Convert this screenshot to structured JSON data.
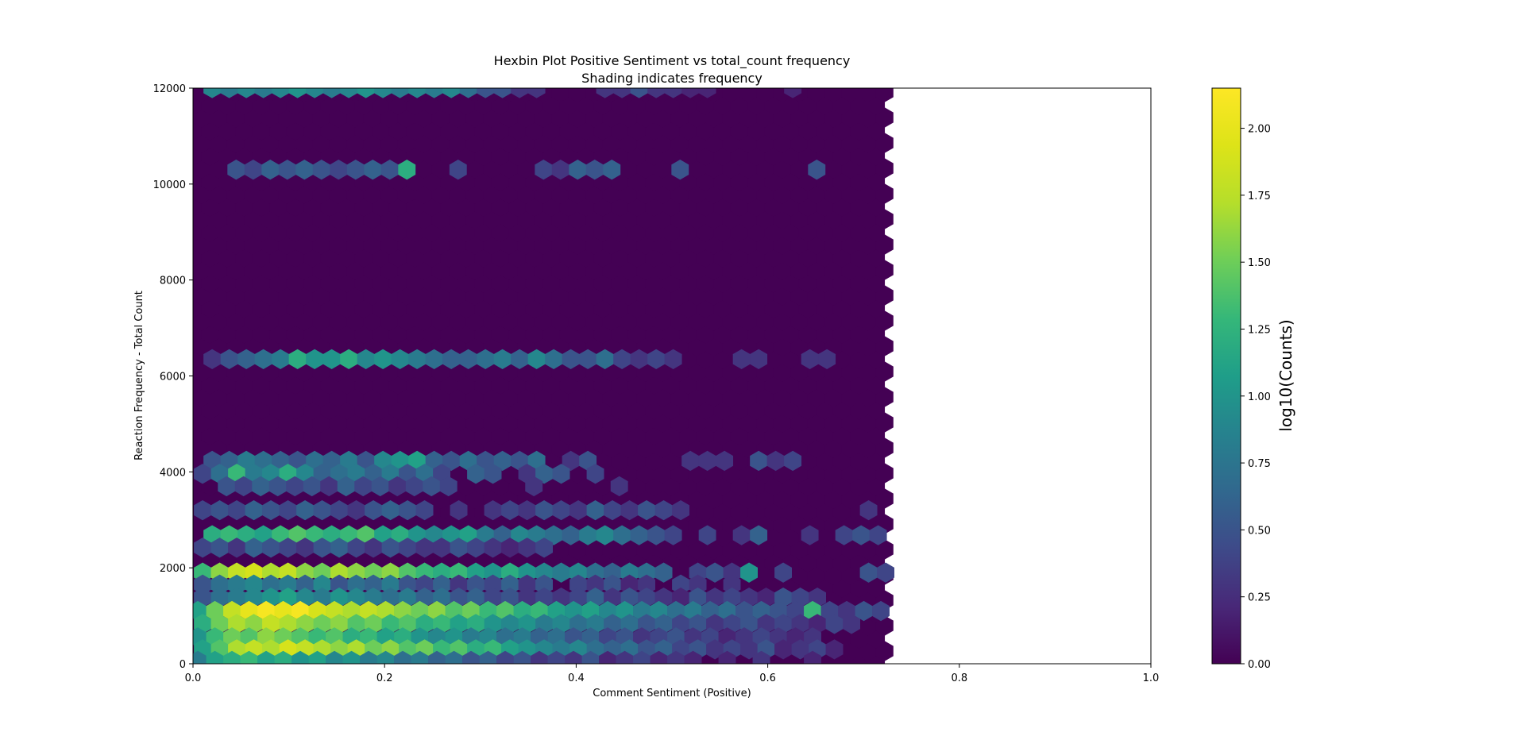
{
  "chart_data": {
    "type": "heatmap",
    "subtype": "hexbin",
    "title_lines": [
      "Hexbin Plot Positive Sentiment vs total_count frequency",
      "Shading indicates frequency"
    ],
    "xlabel": "Comment Sentiment (Positive)",
    "ylabel": "Reaction Frequency - Total Count",
    "xlim": [
      0,
      1
    ],
    "ylim": [
      0,
      12000
    ],
    "x_ticks": [
      0.0,
      0.2,
      0.4,
      0.6,
      0.8,
      1.0
    ],
    "x_tick_labels": [
      "0.0",
      "0.2",
      "0.4",
      "0.6",
      "0.8",
      "1.0"
    ],
    "y_ticks": [
      0,
      2000,
      4000,
      6000,
      8000,
      10000,
      12000
    ],
    "y_tick_labels": [
      "0",
      "2000",
      "4000",
      "6000",
      "8000",
      "10000",
      "12000"
    ],
    "colormap": "viridis",
    "color_scale": "log10",
    "colorbar": {
      "label": "log10(Counts)",
      "range": [
        0,
        2.15
      ],
      "ticks": [
        0.0,
        0.25,
        0.5,
        0.75,
        1.0,
        1.25,
        1.5,
        1.75,
        2.0
      ],
      "tick_labels": [
        "0.00",
        "0.25",
        "0.50",
        "0.75",
        "1.00",
        "1.25",
        "1.50",
        "1.75",
        "2.00"
      ]
    },
    "hex_region": {
      "x_extent": [
        0,
        0.725
      ],
      "y_extent": [
        0,
        12000
      ],
      "background_log10_count": 0.0
    },
    "bands": [
      {
        "y": 12000,
        "start": 0.02,
        "values": [
          0.9,
          0.8,
          0.9,
          0.8,
          0.9,
          1.0,
          0.9,
          0.8,
          0.9,
          1.0,
          0.9,
          0.8,
          0.9,
          0.8,
          0.9,
          0.7,
          0.5,
          0.5,
          0.3,
          0.3,
          0,
          0,
          0,
          0.3,
          0.3,
          0.5,
          0.3,
          0.3,
          0.2,
          0.2,
          0,
          0,
          0,
          0,
          0.2,
          0,
          0,
          0,
          0,
          0,
          0,
          0.2,
          0,
          0,
          0,
          0,
          0,
          0.2
        ],
        "gap": []
      },
      {
        "y": 10300,
        "start": 0.045,
        "values": [
          0.5,
          0.4,
          0.6,
          0.5,
          0.6,
          0.5,
          0.4,
          0.5,
          0.6,
          0.5,
          1.2,
          0,
          0,
          0.4,
          0,
          0,
          0,
          0,
          0.4,
          0.3,
          0.6,
          0.5,
          0.6,
          0,
          0,
          0,
          0.5,
          0,
          0,
          0,
          0,
          0,
          0,
          0,
          0.5,
          0,
          0,
          0,
          0,
          0.4,
          0,
          0,
          0,
          0,
          0,
          0,
          0,
          0,
          0,
          0,
          0,
          0,
          0,
          0,
          0,
          0,
          0,
          0.4
        ],
        "gap": []
      },
      {
        "y": 6350,
        "start": 0.02,
        "values": [
          0.3,
          0.5,
          0.6,
          0.7,
          0.8,
          1.2,
          1.0,
          1.0,
          1.2,
          0.9,
          1.0,
          0.9,
          0.8,
          0.7,
          0.6,
          0.6,
          0.7,
          0.8,
          0.6,
          0.9,
          0.7,
          0.5,
          0.5,
          0.7,
          0.4,
          0.3,
          0.4,
          0.3,
          0,
          0,
          0,
          0.3,
          0.3,
          0,
          0,
          0.3,
          0.3,
          0,
          0,
          0,
          0,
          0,
          0,
          0,
          0,
          0,
          0,
          0.3
        ],
        "gap": []
      },
      {
        "y": 4230,
        "start": 0.02,
        "values": [
          0.5,
          0.6,
          0.8,
          0.7,
          0.6,
          0.5,
          0.7,
          0.6,
          0.8,
          0.5,
          0.9,
          1.0,
          1.1,
          0.6,
          0.5,
          0.7,
          0.5,
          0.6,
          0.5,
          0.7,
          0,
          0.3,
          0.5,
          0,
          0,
          0,
          0,
          0,
          0.3,
          0.3,
          0.3,
          0,
          0.5,
          0.3,
          0.4,
          0,
          0,
          0,
          0,
          0,
          0,
          0,
          0,
          0,
          0,
          0,
          0,
          0.3
        ],
        "gap": []
      },
      {
        "y": 3960,
        "start": 0.01,
        "values": [
          0.4,
          0.7,
          1.3,
          0.8,
          0.9,
          1.2,
          0.9,
          0.6,
          0.7,
          0.8,
          0.6,
          0.8,
          0.5,
          0.7,
          0.4,
          0,
          0.6,
          0.5,
          0,
          0.3,
          0.6,
          0.5,
          0,
          0.4,
          0,
          0,
          0,
          0,
          0,
          0,
          0,
          0,
          0,
          0,
          0,
          0,
          0,
          0,
          0,
          0,
          0,
          0,
          0,
          0,
          0,
          0,
          0,
          0.3
        ],
        "gap": []
      },
      {
        "y": 3700,
        "start": 0.035,
        "values": [
          0.5,
          0.4,
          0.6,
          0.5,
          0.4,
          0.5,
          0.3,
          0.6,
          0.4,
          0.5,
          0.3,
          0.4,
          0.5,
          0.4,
          0,
          0,
          0,
          0,
          0.3,
          0,
          0,
          0,
          0,
          0.3
        ],
        "gap": []
      },
      {
        "y": 3200,
        "start": 0.01,
        "values": [
          0.4,
          0.5,
          0.4,
          0.6,
          0.5,
          0.4,
          0.6,
          0.5,
          0.4,
          0.3,
          0.5,
          0.6,
          0.5,
          0.4,
          0,
          0.3,
          0,
          0.3,
          0.4,
          0.3,
          0.5,
          0.4,
          0.3,
          0.6,
          0.4,
          0.3,
          0.5,
          0.4,
          0.3,
          0,
          0,
          0,
          0,
          0,
          0,
          0,
          0,
          0,
          0,
          0.3,
          0,
          0,
          0.3
        ],
        "gap": []
      },
      {
        "y": 2680,
        "start": 0.02,
        "values": [
          1.2,
          1.3,
          1.2,
          1.1,
          1.3,
          1.4,
          1.3,
          1.2,
          1.3,
          1.4,
          1.1,
          1.2,
          1.0,
          0.9,
          1.0,
          1.1,
          0.8,
          0.6,
          0.9,
          0.8,
          0.7,
          0.6,
          0.8,
          0.9,
          0.7,
          0.6,
          0.5,
          0.4,
          0,
          0.4,
          0,
          0.3,
          0.6,
          0,
          0,
          0.3,
          0,
          0.4,
          0.5,
          0.4
        ],
        "gap": []
      },
      {
        "y": 2420,
        "start": 0.01,
        "values": [
          0.4,
          0.5,
          0.3,
          0.6,
          0.5,
          0.4,
          0.3,
          0.5,
          0.6,
          0.4,
          0.3,
          0.5,
          0.4,
          0.3,
          0.3,
          0.5,
          0.4,
          0.3,
          0.2,
          0.3,
          0.4
        ],
        "gap": []
      },
      {
        "y": 1900,
        "start": 0.01,
        "values": [
          1.3,
          1.6,
          1.8,
          1.9,
          1.7,
          1.8,
          1.6,
          1.5,
          1.7,
          1.6,
          1.5,
          1.6,
          1.4,
          1.3,
          1.2,
          1.3,
          1.1,
          1.0,
          1.2,
          1.0,
          0.9,
          0.8,
          0.9,
          0.7,
          0.6,
          0.8,
          0.7,
          0.6,
          0,
          0.4,
          0.5,
          0.3,
          1.0,
          0,
          0.4,
          0,
          0,
          0,
          0,
          0.5,
          0.4,
          0.3
        ],
        "gap": []
      },
      {
        "y": 1650,
        "start": 0.01,
        "values": [
          0.5,
          0.7,
          0.8,
          0.9,
          0.7,
          0.8,
          0.6,
          0.9,
          0.5,
          0.7,
          0.6,
          0.8,
          0.5,
          0.4,
          0.6,
          0.3,
          0.5,
          0.4,
          0.6,
          0.3,
          0.5,
          0,
          0.4,
          0.3,
          0.5,
          0.2,
          0.3,
          0,
          0.4,
          0.3,
          0,
          0.3
        ],
        "gap": []
      },
      {
        "y": 1380,
        "start": 0.01,
        "values": [
          0.5,
          0.7,
          0.8,
          0.9,
          1.0,
          1.1,
          0.9,
          0.8,
          1.0,
          0.9,
          0.8,
          0.7,
          0.8,
          0.6,
          0.7,
          0.5,
          0.6,
          0.4,
          0.5,
          0.3,
          0.4,
          0.3,
          0.4,
          0.6,
          0.3,
          0.5,
          0.4,
          0.3,
          0.2,
          0.5,
          0.3,
          0.4,
          0.3,
          0.2,
          0.5,
          0.4,
          0.3,
          0,
          0,
          0,
          0,
          0,
          0,
          0.3
        ],
        "gap": []
      },
      {
        "y": 1100,
        "start": 0.005,
        "values": [
          1.1,
          1.5,
          1.8,
          2.0,
          2.1,
          2.0,
          2.1,
          1.9,
          1.8,
          1.7,
          1.8,
          1.7,
          1.6,
          1.5,
          1.6,
          1.4,
          1.5,
          1.3,
          1.4,
          1.2,
          1.3,
          1.1,
          1.0,
          1.1,
          0.9,
          1.0,
          0.8,
          0.9,
          0.7,
          0.8,
          0.6,
          0.7,
          0.5,
          0.6,
          0.5,
          0.4,
          1.3,
          0.4,
          0.3,
          0.5,
          0.4,
          0.3,
          0,
          0.4,
          0.3,
          0.3,
          0.5,
          0.2
        ],
        "gap": []
      },
      {
        "y": 830,
        "start": 0.01,
        "values": [
          1.2,
          1.5,
          1.7,
          1.6,
          1.8,
          1.7,
          1.6,
          1.5,
          1.6,
          1.4,
          1.5,
          1.3,
          1.4,
          1.2,
          1.3,
          1.1,
          1.2,
          1.0,
          0.9,
          1.0,
          0.8,
          0.9,
          0.7,
          0.8,
          0.6,
          0.7,
          0.5,
          0.6,
          0.4,
          0.5,
          0.3,
          0.4,
          0.5,
          0.3,
          0.4,
          0.3,
          0.2,
          0.4,
          0.3,
          0,
          0,
          0,
          0,
          0.3,
          0,
          0.4
        ],
        "gap": []
      },
      {
        "y": 550,
        "start": 0.005,
        "values": [
          1.0,
          1.3,
          1.5,
          1.4,
          1.6,
          1.5,
          1.4,
          1.3,
          1.4,
          1.2,
          1.3,
          1.1,
          1.2,
          1.0,
          0.9,
          1.0,
          0.8,
          0.9,
          0.7,
          0.8,
          0.6,
          0.7,
          0.5,
          0.6,
          0.4,
          0.5,
          0.3,
          0.4,
          0.5,
          0.3,
          0.4,
          0.2,
          0.3,
          0.4,
          0.3,
          0.2,
          0.3,
          0,
          0,
          0,
          0,
          0,
          0,
          0,
          0.4
        ],
        "gap": []
      },
      {
        "y": 300,
        "start": 0.01,
        "values": [
          1.1,
          1.4,
          1.7,
          1.8,
          1.7,
          1.9,
          1.8,
          1.7,
          1.6,
          1.7,
          1.5,
          1.6,
          1.4,
          1.5,
          1.3,
          1.4,
          1.2,
          1.3,
          1.1,
          1.0,
          0.9,
          0.8,
          0.9,
          0.7,
          0.6,
          0.7,
          0.5,
          0.6,
          0.4,
          0.5,
          0.3,
          0.4,
          0.3,
          0.5,
          0.2,
          0.3,
          0.4,
          0.2,
          0,
          0,
          0,
          0,
          0.4,
          0.3,
          0,
          0.3
        ],
        "gap": []
      },
      {
        "y": 60,
        "start": 0.005,
        "values": [
          0.8,
          1.1,
          1.2,
          1.3,
          1.1,
          1.2,
          1.0,
          1.1,
          0.9,
          1.0,
          0.8,
          0.9,
          0.7,
          0.8,
          0.6,
          0.7,
          0.5,
          0.6,
          0.4,
          0.5,
          0.3,
          0.4,
          0.3,
          0.5,
          0.2,
          0.3,
          0.4,
          0.2,
          0.3,
          0.2,
          0,
          0.2,
          0,
          0.3,
          0,
          0,
          0.2
        ],
        "gap": []
      }
    ]
  }
}
